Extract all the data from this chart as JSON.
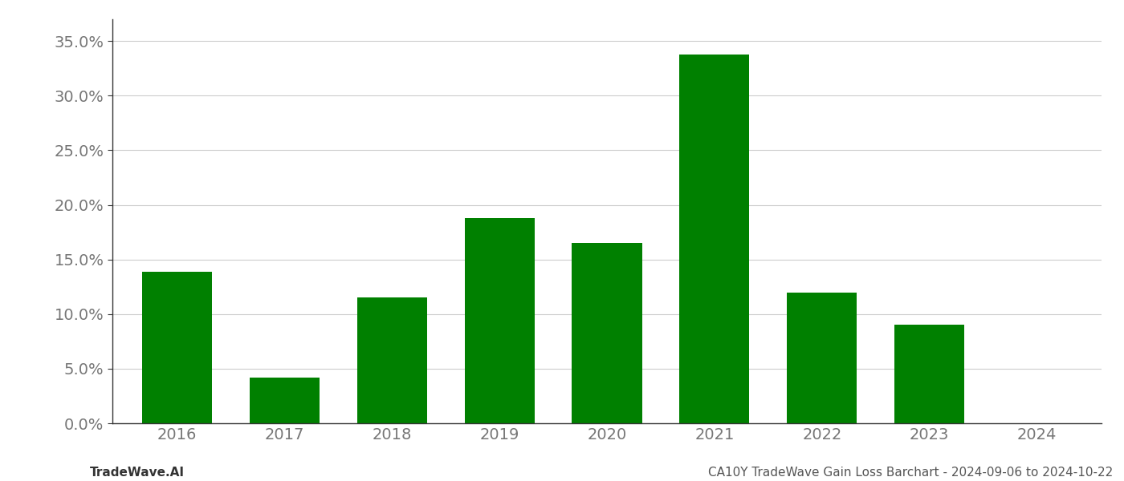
{
  "categories": [
    "2016",
    "2017",
    "2018",
    "2019",
    "2020",
    "2021",
    "2022",
    "2023",
    "2024"
  ],
  "values": [
    0.139,
    0.042,
    0.115,
    0.188,
    0.165,
    0.338,
    0.12,
    0.09,
    0.0
  ],
  "bar_colors": [
    "#008000",
    "#008000",
    "#008000",
    "#008000",
    "#008000",
    "#008000",
    "#008000",
    "#008000",
    "#008000"
  ],
  "title": "CA10Y TradeWave Gain Loss Barchart - 2024-09-06 to 2024-10-22",
  "footer_left": "TradeWave.AI",
  "ylim": [
    0,
    0.37
  ],
  "yticks": [
    0.0,
    0.05,
    0.1,
    0.15,
    0.2,
    0.25,
    0.3,
    0.35
  ],
  "background_color": "#ffffff",
  "grid_color": "#cccccc",
  "bar_width": 0.65,
  "tick_fontsize": 14,
  "footer_fontsize": 11
}
